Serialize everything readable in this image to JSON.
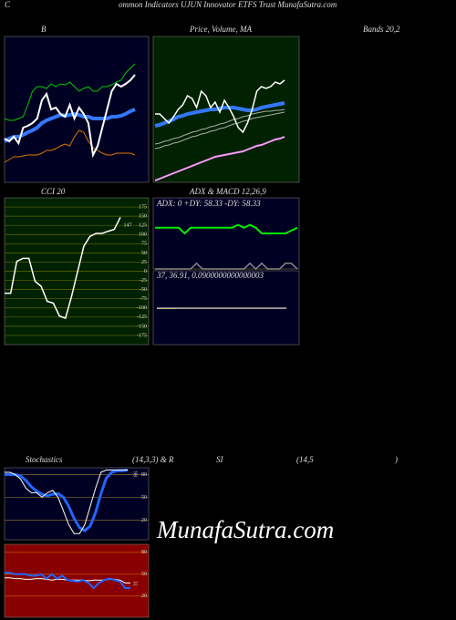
{
  "header": {
    "letter": "C",
    "title": "ommon Indicators UJUN Innovator ETFS Trust MunafaSutra.com"
  },
  "watermark": "MunafaSutra.com",
  "row_labels": [
    "(14,3,3) & R",
    "SI",
    "(14,5",
    ")"
  ],
  "chart_data": [
    {
      "type": "line",
      "title": "B",
      "background": "#000022",
      "ylim": [
        0,
        160
      ],
      "series": [
        {
          "color": "#00cc00",
          "width": 1,
          "values": [
            70,
            68,
            68,
            70,
            72,
            85,
            100,
            105,
            105,
            103,
            108,
            105,
            108,
            107,
            110,
            105,
            100,
            103,
            105,
            100,
            100,
            105,
            105,
            107,
            110,
            112,
            120,
            125,
            130
          ]
        },
        {
          "color": "#3377ff",
          "width": 4,
          "values": [
            45,
            48,
            50,
            50,
            52,
            55,
            57,
            60,
            65,
            68,
            70,
            72,
            74,
            73,
            74,
            75,
            74,
            72,
            72,
            70,
            70,
            70,
            70,
            72,
            72,
            73,
            75,
            78,
            80
          ]
        },
        {
          "color": "#dd7700",
          "width": 1,
          "values": [
            22,
            25,
            28,
            28,
            29,
            30,
            30,
            30,
            32,
            35,
            35,
            37,
            40,
            42,
            40,
            50,
            57,
            55,
            45,
            38,
            35,
            32,
            30,
            30,
            32,
            32,
            32,
            32,
            30
          ]
        },
        {
          "color": "#ffffff",
          "width": 2,
          "values": [
            48,
            45,
            50,
            43,
            60,
            62,
            65,
            70,
            90,
            97,
            80,
            82,
            75,
            72,
            85,
            70,
            82,
            75,
            65,
            30,
            40,
            60,
            80,
            100,
            108,
            105,
            108,
            112,
            118
          ]
        }
      ]
    },
    {
      "type": "line",
      "title": "Price, Volume, MA",
      "annotations": [
        "Bands 20,2"
      ],
      "background": "#002200",
      "ylim": [
        0,
        160
      ],
      "series": [
        {
          "color": "#aaaaaa",
          "width": 1,
          "values": [
            42,
            43,
            45,
            46,
            48,
            49,
            51,
            53,
            55,
            56,
            58,
            59,
            61,
            62,
            64,
            65,
            67,
            69,
            70,
            72,
            73,
            75,
            76,
            77,
            78,
            78,
            79,
            79,
            80
          ]
        },
        {
          "color": "#aaaaaa",
          "width": 1,
          "values": [
            37,
            38,
            40,
            41,
            43,
            44,
            46,
            48,
            50,
            51,
            53,
            54,
            56,
            57,
            59,
            60,
            62,
            64,
            65,
            67,
            68,
            70,
            71,
            72,
            73,
            74,
            75,
            76,
            77
          ]
        },
        {
          "color": "#ff99ff",
          "width": 2,
          "values": [
            2,
            4,
            6,
            8,
            10,
            12,
            14,
            16,
            18,
            20,
            22,
            24,
            26,
            28,
            29,
            30,
            31,
            32,
            33,
            34,
            36,
            38,
            40,
            41,
            43,
            45,
            47,
            48,
            50
          ]
        },
        {
          "color": "#3377ff",
          "width": 4,
          "values": [
            62,
            63,
            65,
            67,
            69,
            72,
            73,
            75,
            76,
            77,
            78,
            79,
            80,
            80,
            81,
            82,
            82,
            82,
            81,
            80,
            79,
            79,
            80,
            82,
            83,
            84,
            85,
            86,
            87
          ]
        },
        {
          "color": "#ffffff",
          "width": 1.5,
          "values": [
            75,
            75,
            70,
            65,
            72,
            80,
            85,
            95,
            92,
            82,
            100,
            95,
            82,
            88,
            77,
            90,
            82,
            72,
            60,
            55,
            65,
            80,
            100,
            105,
            103,
            105,
            110,
            108,
            112
          ]
        }
      ]
    },
    {
      "type": "line",
      "title": "CCI 20",
      "background": "#002200",
      "grid": true,
      "grid_color": "#666600",
      "ylim": [
        -200,
        200
      ],
      "yticks": [
        175,
        150,
        125,
        100,
        75,
        50,
        25,
        0,
        -25,
        -50,
        -75,
        -100,
        -125,
        -150,
        -175
      ],
      "series": [
        {
          "color": "#ffffff",
          "width": 1.5,
          "values": [
            -60,
            -60,
            27,
            35,
            35,
            -27,
            -41,
            -82,
            -87,
            -122,
            -128,
            -68,
            0,
            68,
            95,
            103,
            103,
            109,
            114,
            147
          ]
        }
      ]
    },
    {
      "type": "line",
      "title": "ADX & MACD 12,26,9",
      "annotations": [
        "ADX: 0  +DY: 58.33 -DY: 58.33"
      ],
      "background": "#000022",
      "ylim": [
        0,
        100
      ],
      "series": [
        {
          "color": "#888888",
          "width": 1.5,
          "values": [
            0,
            0,
            0,
            0,
            0,
            0,
            0,
            8,
            0,
            0,
            0,
            0,
            0,
            0,
            0,
            0,
            8,
            0,
            8,
            0,
            0,
            0,
            8,
            8,
            0
          ]
        },
        {
          "color": "#ff3300",
          "width": 1,
          "values": [
            58,
            58,
            58,
            58,
            58,
            50,
            58,
            58,
            58,
            58,
            58,
            58,
            58,
            58,
            62,
            58,
            62,
            58,
            50,
            50,
            50,
            50,
            50,
            54,
            58
          ]
        },
        {
          "color": "#00ee00",
          "width": 2,
          "values": [
            58,
            58,
            58,
            58,
            58,
            50,
            58,
            58,
            58,
            58,
            58,
            58,
            58,
            58,
            62,
            58,
            62,
            58,
            50,
            50,
            50,
            50,
            50,
            54,
            58
          ]
        }
      ]
    },
    {
      "type": "line",
      "annotations": [
        "37,  36.91,  0.0900000000000003"
      ],
      "background": "#000022",
      "ylim": [
        0,
        75
      ],
      "series": [
        {
          "color": "#ffcc00",
          "width": 1,
          "values": [
            36.8,
            36.8,
            36.8,
            36.8,
            36.9,
            36.9,
            36.9,
            36.9,
            36.9,
            36.9,
            36.9,
            36.9,
            36.9,
            36.9,
            36.9,
            36.9,
            36.9,
            36.9,
            36.9,
            36.9,
            36.9,
            36.9,
            36.9,
            36.9,
            36.91
          ]
        },
        {
          "color": "#ffffff",
          "width": 1,
          "values": [
            37,
            37,
            37,
            37,
            37,
            37,
            37,
            37,
            37,
            37,
            37,
            37,
            37,
            37,
            37,
            37,
            37,
            37,
            37,
            37,
            37,
            37,
            37,
            37,
            37
          ]
        }
      ]
    },
    {
      "type": "line",
      "title": "Stochastics",
      "background": "#000022",
      "grid": true,
      "grid_color": "#886633",
      "ylim": [
        -6,
        89
      ],
      "yticks": [
        80,
        50,
        20
      ],
      "series": [
        {
          "color": "#2266ff",
          "width": 3,
          "values": [
            80,
            80,
            80,
            78,
            72,
            64,
            58,
            54,
            52,
            54,
            55,
            50,
            38,
            22,
            10,
            6,
            12,
            30,
            55,
            75,
            83,
            85,
            85,
            86
          ]
        },
        {
          "color": "#ffffff",
          "width": 1,
          "values": [
            83,
            83,
            80,
            74,
            62,
            56,
            56,
            50,
            56,
            59,
            50,
            32,
            14,
            2,
            2,
            14,
            38,
            62,
            83,
            86,
            86,
            86,
            86,
            86
          ]
        }
      ]
    },
    {
      "type": "line",
      "background": "#880000",
      "grid": true,
      "grid_color": "#cc6600",
      "ylim": [
        -9,
        91
      ],
      "yticks": [
        80,
        50,
        20
      ],
      "series": [
        {
          "color": "#ffffff",
          "width": 1,
          "values": [
            45,
            45,
            44,
            44,
            43,
            43,
            44,
            44,
            43,
            42,
            43,
            43,
            42,
            42,
            42,
            42,
            41,
            42,
            42,
            42,
            43,
            43,
            42,
            38,
            38
          ]
        },
        {
          "color": "#2266ff",
          "width": 2,
          "values": [
            52,
            52,
            50,
            50,
            50,
            48,
            48,
            50,
            44,
            50,
            44,
            48,
            42,
            41,
            40,
            42,
            38,
            31,
            38,
            42,
            44,
            42,
            40,
            31,
            31
          ]
        }
      ]
    }
  ]
}
